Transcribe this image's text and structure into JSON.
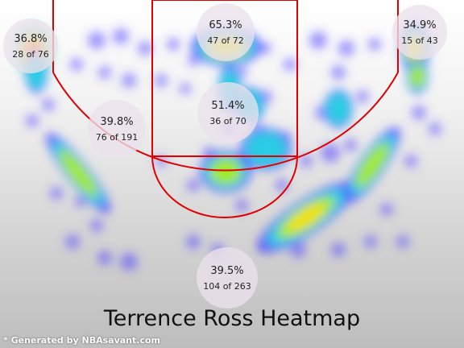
{
  "chart_data": {
    "type": "heatmap",
    "title": "Terrence Ross Heatmap",
    "zones": [
      {
        "id": "left-corner-three",
        "pct": "36.8%",
        "made_of": "28 of 76"
      },
      {
        "id": "restricted-area",
        "pct": "65.3%",
        "made_of": "47 of 72"
      },
      {
        "id": "right-corner-three",
        "pct": "34.9%",
        "made_of": "15 of 43"
      },
      {
        "id": "left-midrange",
        "pct": "39.8%",
        "made_of": "76 of 191"
      },
      {
        "id": "paint",
        "pct": "51.4%",
        "made_of": "36 of 70"
      },
      {
        "id": "above-break-three",
        "pct": "39.5%",
        "made_of": "104 of 263"
      }
    ],
    "court_line_color": "#e00000",
    "heat_colors": [
      "#4f46ff",
      "#22e0e0",
      "#b8f000",
      "#ffe000",
      "#ff3000"
    ]
  },
  "footer": {
    "credit": "* Generated by NBAsavant.com"
  }
}
